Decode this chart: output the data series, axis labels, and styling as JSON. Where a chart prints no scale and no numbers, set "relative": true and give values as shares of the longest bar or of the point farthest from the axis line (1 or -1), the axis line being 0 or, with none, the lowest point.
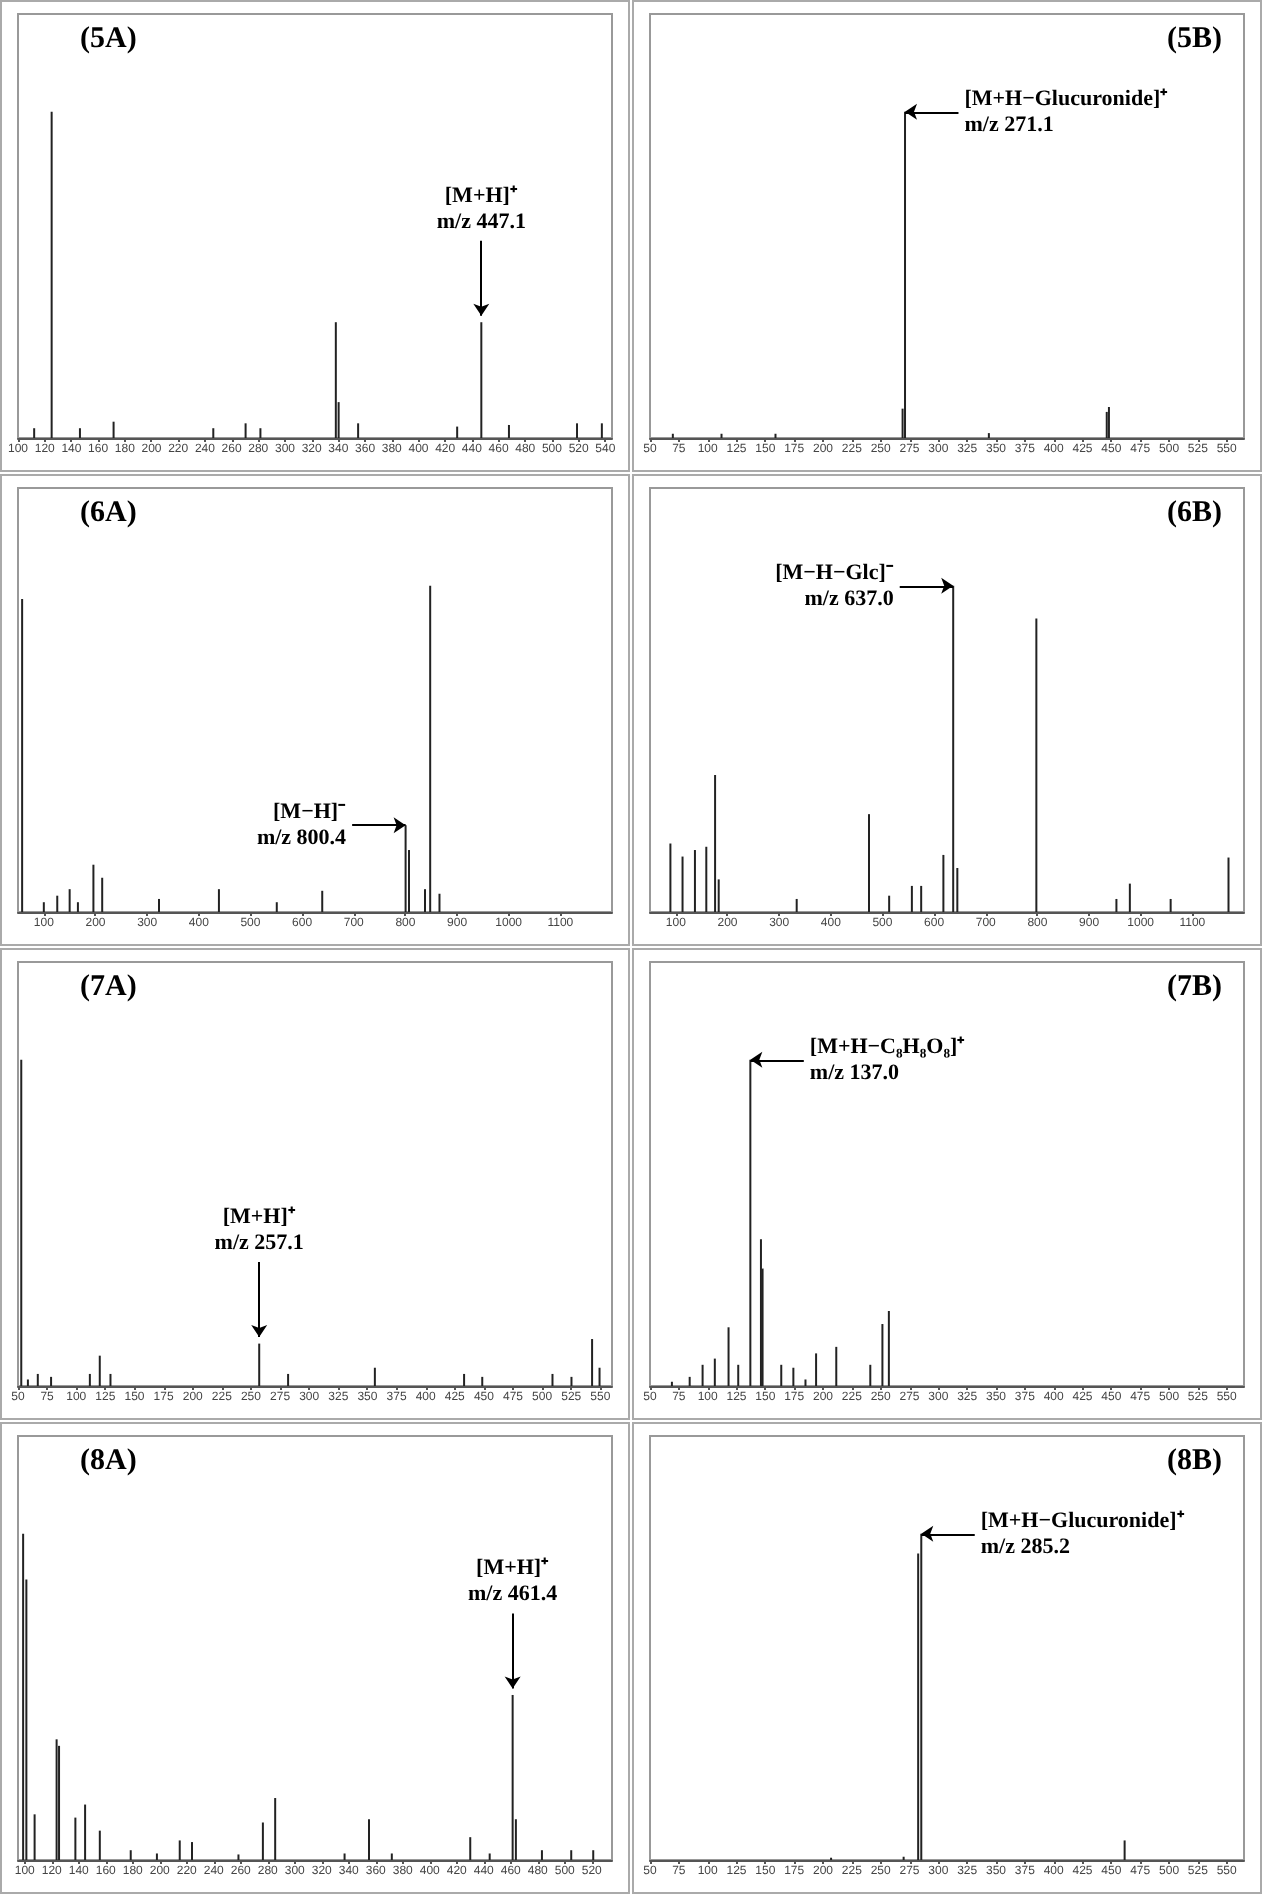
{
  "chart_data": [
    {
      "type": "bar",
      "title": "(5A)",
      "relative": true,
      "color": "#222222",
      "xlim": [
        100,
        545
      ],
      "xticks": [
        100,
        120,
        140,
        160,
        180,
        200,
        220,
        240,
        260,
        280,
        300,
        320,
        340,
        360,
        380,
        400,
        420,
        440,
        460,
        480,
        500,
        520,
        540
      ],
      "x": [
        112.1,
        125.2,
        146.4,
        171.6,
        246.3,
        270.5,
        281.6,
        338.1,
        340.2,
        354.8,
        429,
        447.1,
        467.8,
        518.8,
        537.4
      ],
      "values": [
        0.03,
        1,
        0.03,
        0.05,
        0.03,
        0.045,
        0.03,
        0.355,
        0.11,
        0.045,
        0.035,
        0.355,
        0.04,
        0.045,
        0.045
      ],
      "annotations": [
        {
          "text": "[M+H]⁺\nm/z 447.1",
          "x": 447.1,
          "y": 0.355
        }
      ]
    },
    {
      "type": "bar",
      "title": "(5B)",
      "relative": true,
      "color": "#222222",
      "xlim": [
        50,
        565
      ],
      "xticks": [
        50,
        75,
        100,
        125,
        150,
        175,
        200,
        225,
        250,
        275,
        300,
        325,
        350,
        375,
        400,
        425,
        450,
        475,
        500,
        525,
        550
      ],
      "x": [
        69.8,
        112,
        158.8,
        269,
        271.1,
        343.8,
        446,
        447.9
      ],
      "values": [
        0.013,
        0.013,
        0.013,
        0.09,
        1,
        0.015,
        0.08,
        0.095
      ],
      "annotations": [
        {
          "text": "[M+H−Glucuronide]⁺\nm/z 271.1",
          "x": 271.1,
          "y": 1
        }
      ]
    },
    {
      "type": "bar",
      "title": "(6A)",
      "relative": true,
      "color": "#222222",
      "xlim": [
        50,
        1200
      ],
      "xticks": [
        100,
        200,
        300,
        400,
        500,
        600,
        700,
        800,
        900,
        1000,
        1100
      ],
      "x": [
        58,
        100,
        126,
        150,
        166,
        196,
        213,
        323,
        439,
        551,
        639,
        800.4,
        807,
        838,
        848,
        866
      ],
      "values": [
        0.96,
        0.03,
        0.05,
        0.07,
        0.03,
        0.145,
        0.105,
        0.04,
        0.07,
        0.03,
        0.065,
        0.266,
        0.19,
        0.07,
        1,
        0.056
      ],
      "annotations": [
        {
          "text": "[M−H]⁻\nm/z 800.4",
          "x": 800.4,
          "y": 0.266
        }
      ]
    },
    {
      "type": "bar",
      "title": "(6B)",
      "relative": true,
      "color": "#222222",
      "xlim": [
        50,
        1200
      ],
      "xticks": [
        100,
        200,
        300,
        400,
        500,
        600,
        700,
        800,
        900,
        1000,
        1100
      ],
      "x": [
        89.5,
        113,
        137,
        159,
        176,
        183,
        334,
        474,
        513,
        557,
        575,
        618,
        637,
        645,
        798,
        953,
        979,
        1058,
        1170
      ],
      "values": [
        0.21,
        0.17,
        0.19,
        0.2,
        0.42,
        0.1,
        0.04,
        0.3,
        0.05,
        0.08,
        0.08,
        0.175,
        1,
        0.135,
        0.9,
        0.04,
        0.087,
        0.04,
        0.167
      ],
      "annotations": [
        {
          "text": "[M−H−Glc]⁻\nm/z 637.0",
          "x": 637,
          "y": 1
        }
      ]
    },
    {
      "type": "bar",
      "title": "(7A)",
      "relative": true,
      "color": "#222222",
      "xlim": [
        50,
        560
      ],
      "xticks": [
        50,
        75,
        100,
        125,
        150,
        175,
        200,
        225,
        250,
        275,
        300,
        325,
        350,
        375,
        400,
        425,
        450,
        475,
        500,
        525,
        550
      ],
      "x": [
        52.8,
        58.5,
        67,
        78.4,
        111.7,
        120.2,
        129.4,
        257.1,
        281.9,
        356.4,
        433,
        448.6,
        508.9,
        525.2,
        542.9,
        549.3
      ],
      "values": [
        1,
        0.02,
        0.037,
        0.028,
        0.037,
        0.093,
        0.037,
        0.13,
        0.037,
        0.056,
        0.037,
        0.028,
        0.037,
        0.028,
        0.144,
        0.056
      ],
      "annotations": [
        {
          "text": "[M+H]⁺\nm/z 257.1",
          "x": 257.1,
          "y": 0.13
        }
      ]
    },
    {
      "type": "bar",
      "title": "(7B)",
      "relative": true,
      "color": "#222222",
      "xlim": [
        50,
        565
      ],
      "xticks": [
        50,
        75,
        100,
        125,
        150,
        175,
        200,
        225,
        250,
        275,
        300,
        325,
        350,
        375,
        400,
        425,
        450,
        475,
        500,
        525,
        550
      ],
      "x": [
        69,
        84.4,
        95.6,
        106.2,
        118.1,
        126.5,
        137,
        146.2,
        147.6,
        163.8,
        174.3,
        184.8,
        194,
        211.5,
        241,
        251.5,
        257.1
      ],
      "values": [
        0.013,
        0.028,
        0.065,
        0.084,
        0.18,
        0.065,
        1,
        0.45,
        0.36,
        0.065,
        0.056,
        0.02,
        0.1,
        0.12,
        0.065,
        0.19,
        0.23
      ],
      "annotations": [
        {
          "text": "[M+H−C₈H₈O₈]⁺\nm/z 137.0",
          "x": 137,
          "y": 1
        }
      ]
    },
    {
      "type": "bar",
      "title": "(8A)",
      "relative": true,
      "color": "#222222",
      "xlim": [
        95,
        535
      ],
      "xticks": [
        100,
        120,
        140,
        160,
        180,
        200,
        220,
        240,
        260,
        280,
        300,
        320,
        340,
        360,
        380,
        400,
        420,
        440,
        460,
        480,
        500,
        520
      ],
      "x": [
        98.8,
        101.2,
        107.3,
        123.6,
        125.4,
        137.5,
        144.7,
        155.6,
        178.5,
        197.9,
        214.8,
        223.9,
        258.3,
        276.4,
        285.5,
        336.9,
        355,
        371.9,
        430,
        444.4,
        461.4,
        463.8,
        483.1,
        504.8,
        521.1
      ],
      "values": [
        1,
        0.86,
        0.14,
        0.37,
        0.35,
        0.13,
        0.17,
        0.09,
        0.03,
        0.02,
        0.06,
        0.055,
        0.017,
        0.115,
        0.19,
        0.02,
        0.125,
        0.02,
        0.07,
        0.02,
        0.506,
        0.125,
        0.03,
        0.03,
        0.03
      ],
      "annotations": [
        {
          "text": "[M+H]⁺\nm/z 461.4",
          "x": 461.4,
          "y": 0.506
        }
      ]
    },
    {
      "type": "bar",
      "title": "(8B)",
      "relative": true,
      "color": "#222222",
      "xlim": [
        50,
        565
      ],
      "xticks": [
        50,
        75,
        100,
        125,
        150,
        175,
        200,
        225,
        250,
        275,
        300,
        325,
        350,
        375,
        400,
        425,
        450,
        475,
        500,
        525,
        550
      ],
      "x": [
        207,
        269.9,
        282.5,
        285.2,
        461.5
      ],
      "values": [
        0.007,
        0.01,
        0.94,
        1,
        0.06
      ],
      "annotations": [
        {
          "text": "[M+H−Glucuronide]⁺\nm/z 285.2",
          "x": 285.2,
          "y": 1
        }
      ]
    }
  ]
}
